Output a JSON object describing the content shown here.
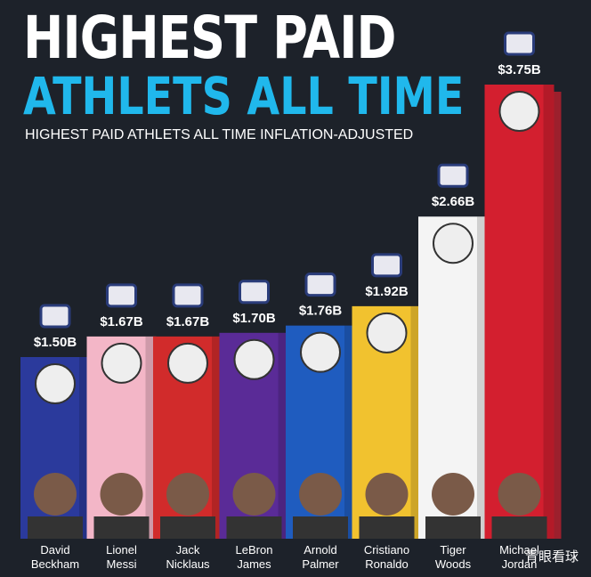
{
  "chart_data": {
    "type": "bar",
    "title": "HIGHEST PAID",
    "title_line2": "ATHLETS ALL TIME",
    "subtitle": "HIGHEST PAID ATHLETS ALL TIME INFLATION-ADJUSTED",
    "categories": [
      "David Beckham",
      "Lionel Messi",
      "Jack Nicklaus",
      "LeBron James",
      "Arnold Palmer",
      "Cristiano Ronaldo",
      "Tiger Woods",
      "Michael Jordan"
    ],
    "values": [
      1.5,
      1.67,
      1.67,
      1.7,
      1.76,
      1.92,
      2.66,
      3.75
    ],
    "value_labels": [
      "$1.50B",
      "$1.67B",
      "$1.67B",
      "$1.70B",
      "$1.76B",
      "$1.92B",
      "$2.66B",
      "$3.75B"
    ],
    "colors": [
      "#2b3a9c",
      "#f3b6c7",
      "#d12b2b",
      "#5a2b97",
      "#1f5cbf",
      "#f1c22f",
      "#f4f4f4",
      "#d31f2f"
    ],
    "watermark": "青眼看球"
  }
}
